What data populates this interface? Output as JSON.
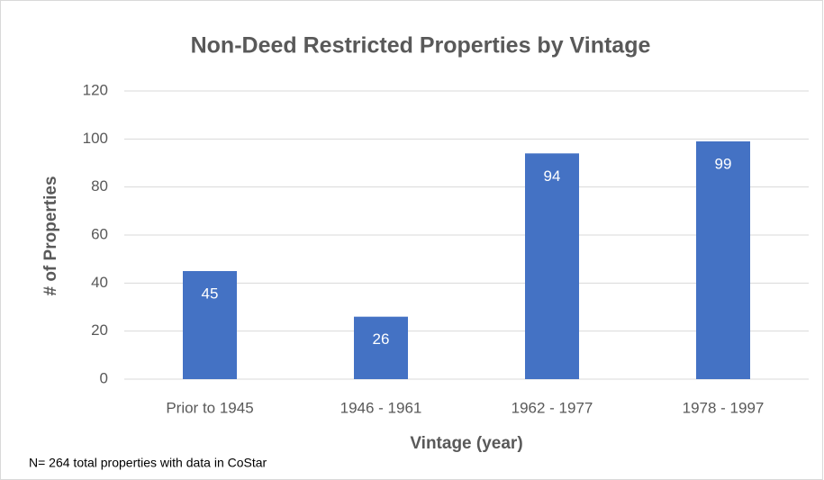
{
  "chart_data": {
    "type": "bar",
    "title": "Non-Deed Restricted Properties by Vintage",
    "x_label": "Vintage (year)",
    "y_label": "# of Properties",
    "categories": [
      "Prior to 1945",
      "1946 - 1961",
      "1962 - 1977",
      "1978 - 1997"
    ],
    "values": [
      45,
      26,
      94,
      99
    ],
    "color": "#4472c4",
    "ylim": [
      0,
      120
    ],
    "yticks": [
      0,
      20,
      40,
      60,
      80,
      100,
      120
    ],
    "grid": true,
    "note": "N= 264 total properties with data in CoStar"
  }
}
